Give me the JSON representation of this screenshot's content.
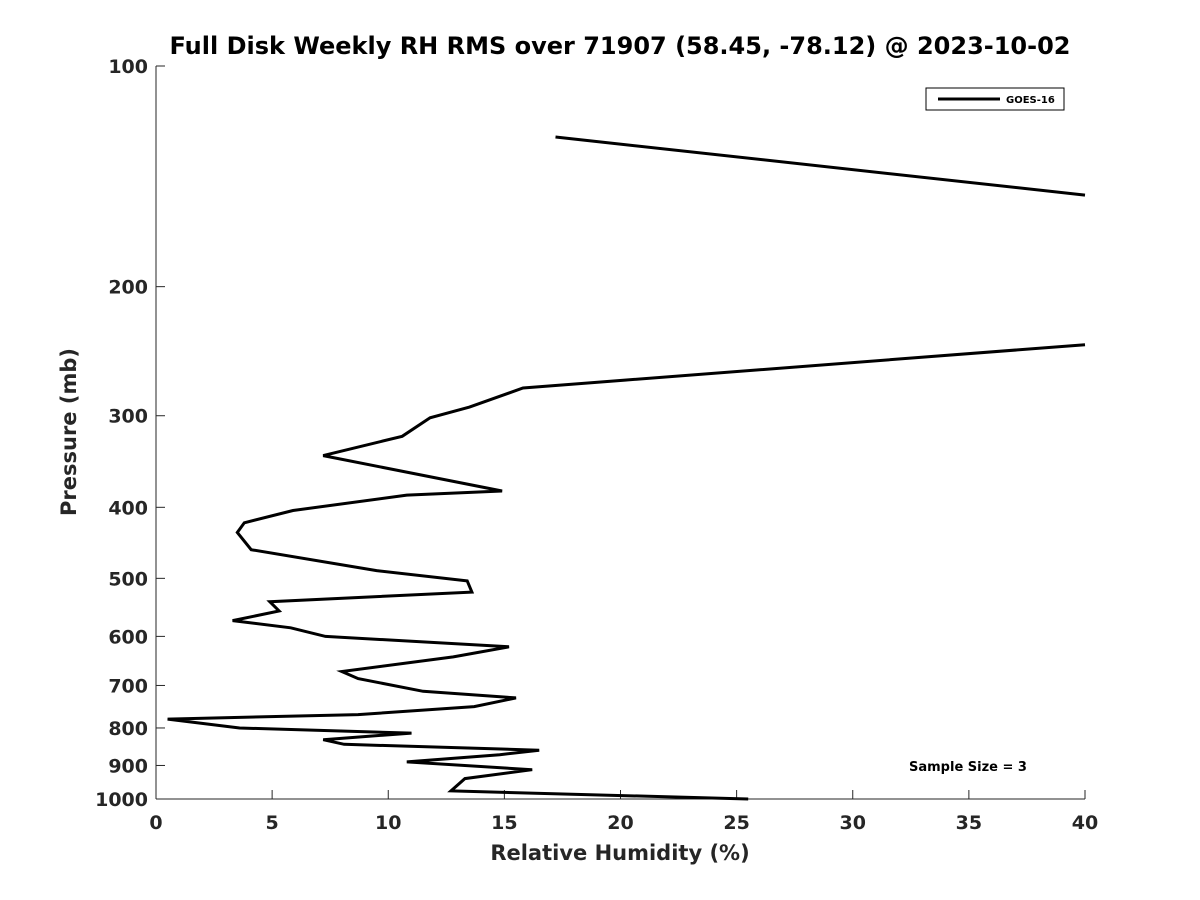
{
  "chart_data": {
    "type": "line",
    "title": "Full Disk Weekly RH RMS over 71907 (58.45, -78.12) @ 2023-10-02",
    "xlabel": "Relative Humidity (%)",
    "ylabel": "Pressure (mb)",
    "xlim": [
      0,
      40
    ],
    "ylim": [
      1000,
      100
    ],
    "y_scale": "log",
    "x_ticks": [
      "0",
      "5",
      "10",
      "15",
      "20",
      "25",
      "30",
      "35",
      "40"
    ],
    "y_ticks": [
      "100",
      "200",
      "300",
      "400",
      "500",
      "600",
      "700",
      "800",
      "900",
      "1000"
    ],
    "grid": false,
    "legend_position": "top-right",
    "annotation": "Sample Size = 3",
    "series": [
      {
        "name": "GOES-16",
        "color": "#000000",
        "segments": [
          [
            [
              17.2,
              125
            ],
            [
              40,
              150
            ]
          ],
          [
            [
              40,
              240
            ],
            [
              15.8,
              275
            ],
            [
              13.5,
              292
            ],
            [
              11.8,
              302
            ],
            [
              10.6,
              320
            ],
            [
              7.2,
              340
            ],
            [
              14.9,
              380
            ],
            [
              10.8,
              385
            ],
            [
              5.9,
              404
            ],
            [
              3.8,
              420
            ],
            [
              3.5,
              433
            ],
            [
              4.1,
              457
            ],
            [
              9.5,
              488
            ],
            [
              13.4,
              504
            ],
            [
              13.6,
              522
            ],
            [
              4.9,
              538
            ],
            [
              5.3,
              554
            ],
            [
              3.3,
              571
            ],
            [
              5.8,
              584
            ],
            [
              7.3,
              600
            ],
            [
              15.2,
              620
            ],
            [
              12.8,
              640
            ],
            [
              8.0,
              670
            ],
            [
              8.7,
              685
            ],
            [
              11.5,
              713
            ],
            [
              15.5,
              728
            ],
            [
              13.7,
              748
            ],
            [
              8.7,
              767
            ],
            [
              0.5,
              778
            ],
            [
              3.6,
              800
            ],
            [
              11.0,
              813
            ],
            [
              7.2,
              830
            ],
            [
              8.1,
              842
            ],
            [
              16.5,
              858
            ],
            [
              14.8,
              870
            ],
            [
              10.8,
              890
            ],
            [
              16.2,
              912
            ],
            [
              13.3,
              938
            ],
            [
              12.7,
              975
            ],
            [
              25.5,
              1000
            ]
          ]
        ]
      }
    ]
  }
}
